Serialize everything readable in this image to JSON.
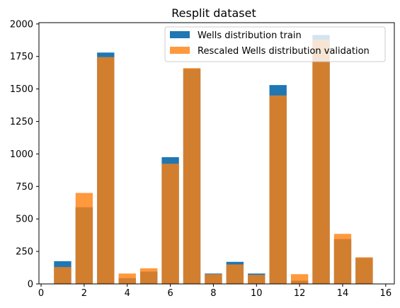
{
  "chart_data": {
    "type": "bar",
    "title": "Resplit dataset",
    "xlabel": "",
    "ylabel": "",
    "xlim": [
      -0.1,
      16.4
    ],
    "ylim": [
      0,
      2010
    ],
    "xticks": [
      0,
      2,
      4,
      6,
      8,
      10,
      12,
      14,
      16
    ],
    "yticks": [
      0,
      250,
      500,
      750,
      1000,
      1250,
      1500,
      1750,
      2000
    ],
    "x": [
      1,
      2,
      3,
      4,
      5,
      6,
      7,
      8,
      9,
      10,
      11,
      12,
      13,
      14,
      15
    ],
    "bar_width": 0.8,
    "grid": false,
    "legend_position": "top-right",
    "series": [
      {
        "name": "Wells distribution train",
        "color": "#1f77b4",
        "opacity": 1.0,
        "values": [
          175,
          590,
          1780,
          45,
          95,
          975,
          1655,
          80,
          170,
          80,
          1530,
          25,
          1915,
          345,
          200
        ]
      },
      {
        "name": "Rescaled Wells distribution validation",
        "color": "#ff7f0e",
        "opacity": 0.8,
        "values": [
          130,
          700,
          1745,
          80,
          120,
          925,
          1660,
          75,
          150,
          70,
          1450,
          75,
          1880,
          385,
          205
        ]
      }
    ]
  }
}
